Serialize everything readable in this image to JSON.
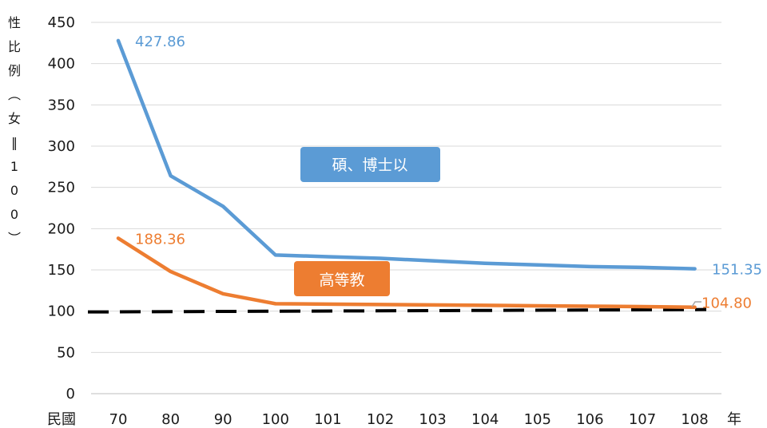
{
  "chart_data": {
    "type": "line",
    "categories": [
      "70",
      "80",
      "90",
      "100",
      "101",
      "102",
      "103",
      "104",
      "105",
      "106",
      "107",
      "108"
    ],
    "x_prefix": "民國",
    "x_unit": "年",
    "ylabel_chars": [
      "性",
      "比",
      "例",
      "︵",
      "女",
      "‖",
      "1",
      "0",
      "0",
      "︶"
    ],
    "ylim": [
      0,
      450
    ],
    "yticks": [
      0,
      50,
      100,
      150,
      200,
      250,
      300,
      350,
      400,
      450
    ],
    "grid": true,
    "reference_line": {
      "value": 100,
      "style": "dashed",
      "color": "#000000"
    },
    "series": [
      {
        "name": "碩、博士以",
        "color": "#5b9bd5",
        "values": [
          427.86,
          264,
          227,
          168,
          166,
          164,
          161,
          158,
          156,
          154,
          153,
          151.35
        ],
        "start_label": "427.86",
        "end_label": "151.35"
      },
      {
        "name": "高等教",
        "color": "#ed7d31",
        "values": [
          188.36,
          148,
          121,
          109,
          108.5,
          108,
          107.5,
          107,
          106.5,
          106,
          105.5,
          104.8
        ],
        "start_label": "188.36",
        "end_label": "104.80"
      }
    ]
  }
}
